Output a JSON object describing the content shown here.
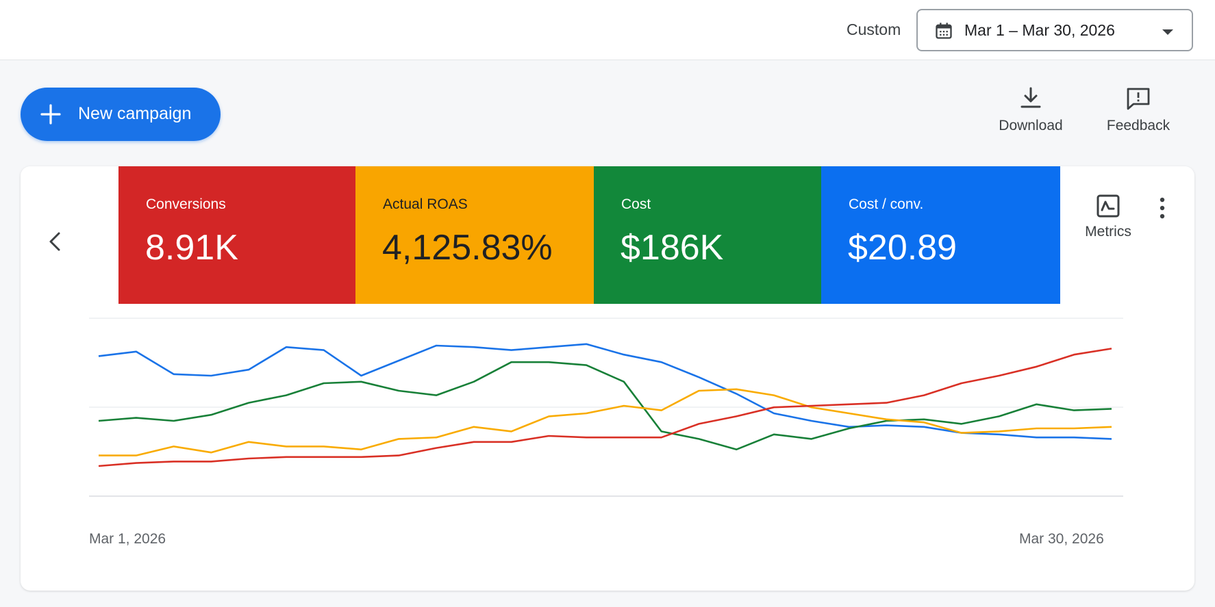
{
  "header": {
    "custom_label": "Custom",
    "date_range": "Mar 1 – Mar 30, 2026"
  },
  "actions": {
    "new_campaign": "New campaign",
    "download": "Download",
    "feedback": "Feedback",
    "metrics": "Metrics"
  },
  "scorecards": [
    {
      "name": "Conversions",
      "value": "8.91K",
      "color": "#d32626"
    },
    {
      "name": "Actual ROAS",
      "value": "4,125.83%",
      "color": "#f9a500"
    },
    {
      "name": "Cost",
      "value": "$186K",
      "color": "#12883a"
    },
    {
      "name": "Cost / conv.",
      "value": "$20.89",
      "color": "#0b6ff0"
    }
  ],
  "icons": [
    "calendar-icon",
    "dropdown-caret-icon",
    "plus-icon",
    "download-icon",
    "feedback-icon",
    "chevron-left-icon",
    "metrics-chart-icon",
    "more-vert-icon"
  ],
  "chart_data": {
    "type": "line",
    "x_start_label": "Mar 1, 2026",
    "x_end_label": "Mar 30, 2026",
    "x_count": 28,
    "grid": true,
    "y_unit": "relative (no axis printed)",
    "ylim": [
      0,
      100
    ],
    "series": [
      {
        "metric": "Cost / conv.",
        "color": "#1a73e8",
        "values": [
          83,
          86,
          71,
          70,
          74,
          89,
          87,
          70,
          80,
          90,
          89,
          87,
          89,
          91,
          84,
          79,
          69,
          58,
          45,
          40,
          36,
          37,
          36,
          32,
          31,
          29,
          29,
          28
        ]
      },
      {
        "metric": "Cost",
        "color": "#188038",
        "values": [
          40,
          42,
          40,
          44,
          52,
          57,
          65,
          66,
          60,
          57,
          66,
          79,
          79,
          77,
          66,
          33,
          28,
          21,
          31,
          28,
          35,
          40,
          41,
          38,
          43,
          51,
          47,
          48
        ]
      },
      {
        "metric": "Actual ROAS",
        "color": "#f9ab00",
        "values": [
          17,
          17,
          23,
          19,
          26,
          23,
          23,
          21,
          28,
          29,
          36,
          33,
          43,
          45,
          50,
          47,
          60,
          61,
          57,
          49,
          45,
          41,
          39,
          32,
          33,
          35,
          35,
          36
        ]
      },
      {
        "metric": "Conversions",
        "color": "#d93025",
        "values": [
          10,
          12,
          13,
          13,
          15,
          16,
          16,
          16,
          17,
          22,
          26,
          26,
          30,
          29,
          29,
          29,
          38,
          43,
          49,
          50,
          51,
          52,
          57,
          65,
          70,
          76,
          84,
          88
        ]
      }
    ]
  }
}
